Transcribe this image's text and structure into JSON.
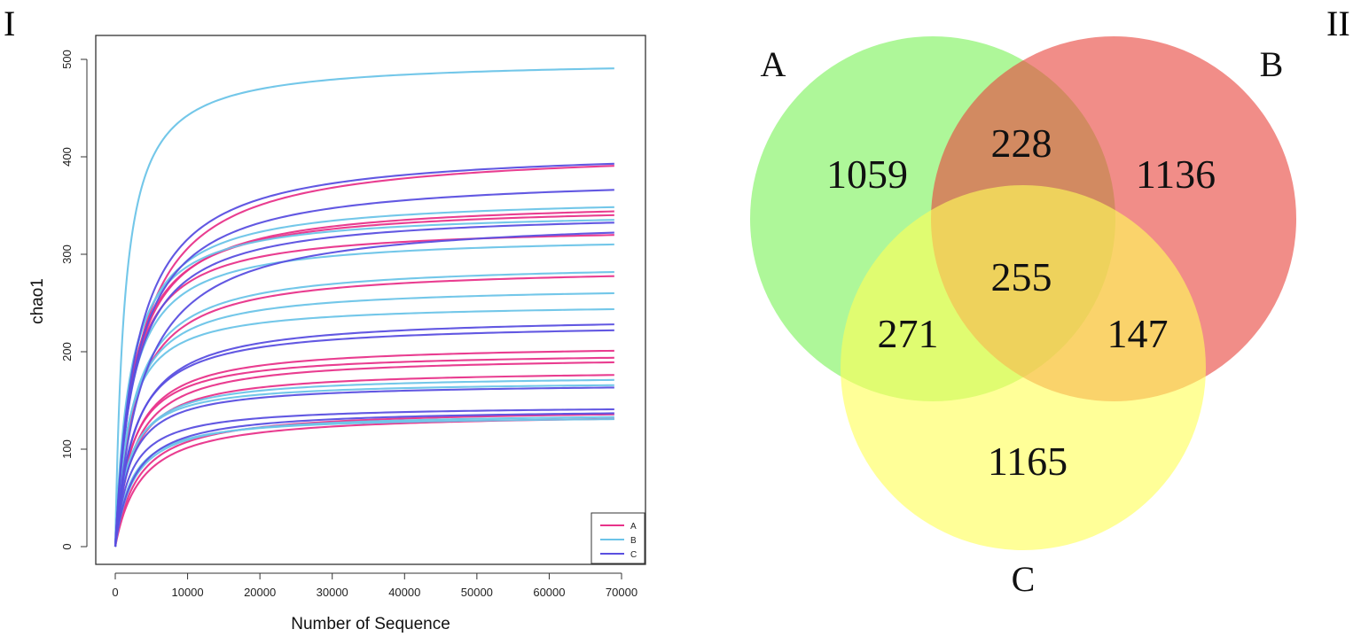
{
  "panels": {
    "left": "I",
    "right": "II"
  },
  "chart_data": [
    {
      "type": "line",
      "xlabel": "Number of Sequence",
      "ylabel": "chao1",
      "xlim": [
        0,
        72000
      ],
      "ylim": [
        0,
        520
      ],
      "x_ticks": [
        0,
        10000,
        20000,
        30000,
        40000,
        50000,
        60000,
        70000
      ],
      "y_ticks": [
        0,
        100,
        200,
        300,
        400,
        500
      ],
      "grid": false,
      "legend_position": "bottom-right",
      "legend": [
        {
          "label": "A",
          "color": "#e8338a"
        },
        {
          "label": "B",
          "color": "#6cc4e8"
        },
        {
          "label": "C",
          "color": "#5a4fe0"
        }
      ],
      "x_end": 69000,
      "curve_model": "asymptote * x / (x + k)",
      "series": [
        {
          "group": "A",
          "asymptote": 410,
          "k": 3400
        },
        {
          "group": "A",
          "asymptote": 357,
          "k": 2600
        },
        {
          "group": "A",
          "asymptote": 352,
          "k": 2400
        },
        {
          "group": "A",
          "asymptote": 330,
          "k": 2200
        },
        {
          "group": "A",
          "asymptote": 288,
          "k": 2600
        },
        {
          "group": "A",
          "asymptote": 208,
          "k": 2400
        },
        {
          "group": "A",
          "asymptote": 200,
          "k": 2200
        },
        {
          "group": "A",
          "asymptote": 196,
          "k": 2500
        },
        {
          "group": "A",
          "asymptote": 182,
          "k": 2300
        },
        {
          "group": "A",
          "asymptote": 142,
          "k": 3200
        },
        {
          "group": "A",
          "asymptote": 138,
          "k": 3600
        },
        {
          "group": "B",
          "asymptote": 500,
          "k": 1300
        },
        {
          "group": "B",
          "asymptote": 360,
          "k": 2300
        },
        {
          "group": "B",
          "asymptote": 345,
          "k": 2000
        },
        {
          "group": "B",
          "asymptote": 320,
          "k": 2200
        },
        {
          "group": "B",
          "asymptote": 292,
          "k": 2500
        },
        {
          "group": "B",
          "asymptote": 268,
          "k": 2100
        },
        {
          "group": "B",
          "asymptote": 250,
          "k": 1800
        },
        {
          "group": "B",
          "asymptote": 176,
          "k": 2000
        },
        {
          "group": "B",
          "asymptote": 170,
          "k": 1800
        },
        {
          "group": "B",
          "asymptote": 138,
          "k": 2600
        },
        {
          "group": "B",
          "asymptote": 135,
          "k": 2200
        },
        {
          "group": "C",
          "asymptote": 410,
          "k": 3000
        },
        {
          "group": "C",
          "asymptote": 382,
          "k": 3000
        },
        {
          "group": "C",
          "asymptote": 345,
          "k": 2600
        },
        {
          "group": "C",
          "asymptote": 340,
          "k": 3800
        },
        {
          "group": "C",
          "asymptote": 237,
          "k": 2700
        },
        {
          "group": "C",
          "asymptote": 230,
          "k": 2500
        },
        {
          "group": "C",
          "asymptote": 168,
          "k": 2000
        },
        {
          "group": "C",
          "asymptote": 145,
          "k": 2000
        },
        {
          "group": "C",
          "asymptote": 142,
          "k": 2600
        }
      ]
    },
    {
      "type": "venn",
      "sets": [
        {
          "label": "A",
          "color": "#7df25a"
        },
        {
          "label": "B",
          "color": "#e8473f"
        },
        {
          "label": "C",
          "color": "#ffff59"
        }
      ],
      "regions": {
        "A_only": "1059",
        "B_only": "1136",
        "C_only": "1165",
        "A_B": "228",
        "A_C": "271",
        "B_C": "147",
        "A_B_C": "255"
      }
    }
  ]
}
